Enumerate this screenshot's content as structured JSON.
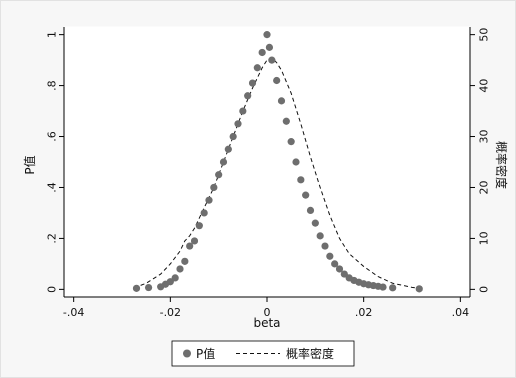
{
  "chart_data": {
    "type": "scatter",
    "xlabel": "beta",
    "ylabel_left": "P值",
    "ylabel_right": "概率密度",
    "xlim": [
      -0.042,
      0.042
    ],
    "ylim_left": [
      -0.03,
      1.03
    ],
    "ylim_right": [
      -1.5,
      51.5
    ],
    "xticks": [
      -0.04,
      -0.02,
      0,
      0.02,
      0.04
    ],
    "xtick_labels": [
      "-.04",
      "-.02",
      "0",
      ".02",
      ".04"
    ],
    "yticks_left": [
      0,
      0.2,
      0.4,
      0.6,
      0.8,
      1
    ],
    "ytick_labels_left": [
      "0",
      ".2",
      ".4",
      ".6",
      ".8",
      "1"
    ],
    "yticks_right": [
      0,
      10,
      20,
      30,
      40,
      50
    ],
    "ytick_labels_right": [
      "0",
      "10",
      "20",
      "30",
      "40",
      "50"
    ],
    "grid": false,
    "legend_position": "bottom",
    "series": [
      {
        "name": "P值",
        "kind": "scatter",
        "axis": "left",
        "color": "#6e6e6e",
        "x": [
          -0.027,
          -0.0245,
          -0.022,
          -0.021,
          -0.02,
          -0.019,
          -0.018,
          -0.017,
          -0.016,
          -0.015,
          -0.014,
          -0.013,
          -0.012,
          -0.011,
          -0.01,
          -0.009,
          -0.008,
          -0.007,
          -0.006,
          -0.005,
          -0.004,
          -0.003,
          -0.002,
          -0.001,
          0.0,
          0.0005,
          0.001,
          0.002,
          0.003,
          0.004,
          0.005,
          0.006,
          0.007,
          0.008,
          0.009,
          0.01,
          0.011,
          0.012,
          0.013,
          0.014,
          0.015,
          0.016,
          0.017,
          0.018,
          0.019,
          0.02,
          0.021,
          0.022,
          0.023,
          0.024,
          0.026,
          0.0315
        ],
        "y": [
          0.004,
          0.007,
          0.01,
          0.02,
          0.03,
          0.045,
          0.08,
          0.11,
          0.17,
          0.19,
          0.25,
          0.3,
          0.35,
          0.4,
          0.45,
          0.5,
          0.55,
          0.6,
          0.65,
          0.7,
          0.76,
          0.81,
          0.87,
          0.93,
          1.0,
          0.95,
          0.9,
          0.82,
          0.74,
          0.66,
          0.58,
          0.5,
          0.43,
          0.37,
          0.31,
          0.26,
          0.21,
          0.17,
          0.13,
          0.1,
          0.08,
          0.06,
          0.045,
          0.035,
          0.028,
          0.022,
          0.018,
          0.015,
          0.012,
          0.009,
          0.006,
          0.002
        ]
      },
      {
        "name": "概率密度",
        "kind": "line",
        "style": "dashed",
        "axis": "right",
        "color": "#111111",
        "x": [
          -0.0275,
          -0.025,
          -0.022,
          -0.02,
          -0.018,
          -0.017,
          -0.016,
          -0.015,
          -0.013,
          -0.011,
          -0.009,
          -0.007,
          -0.005,
          -0.003,
          -0.001,
          0.0,
          0.001,
          0.002,
          0.003,
          0.005,
          0.007,
          0.009,
          0.011,
          0.013,
          0.015,
          0.017,
          0.02,
          0.023,
          0.026,
          0.03,
          0.0315
        ],
        "y": [
          0.3,
          1.2,
          3.0,
          5.0,
          7.5,
          9.5,
          10.5,
          12.0,
          16.0,
          20.0,
          25.0,
          30.0,
          35.0,
          39.5,
          43.5,
          45.0,
          45.5,
          44.5,
          43.0,
          38.5,
          32.5,
          26.0,
          20.0,
          14.5,
          10.0,
          7.0,
          4.5,
          2.5,
          1.2,
          0.4,
          0.2
        ]
      }
    ]
  }
}
